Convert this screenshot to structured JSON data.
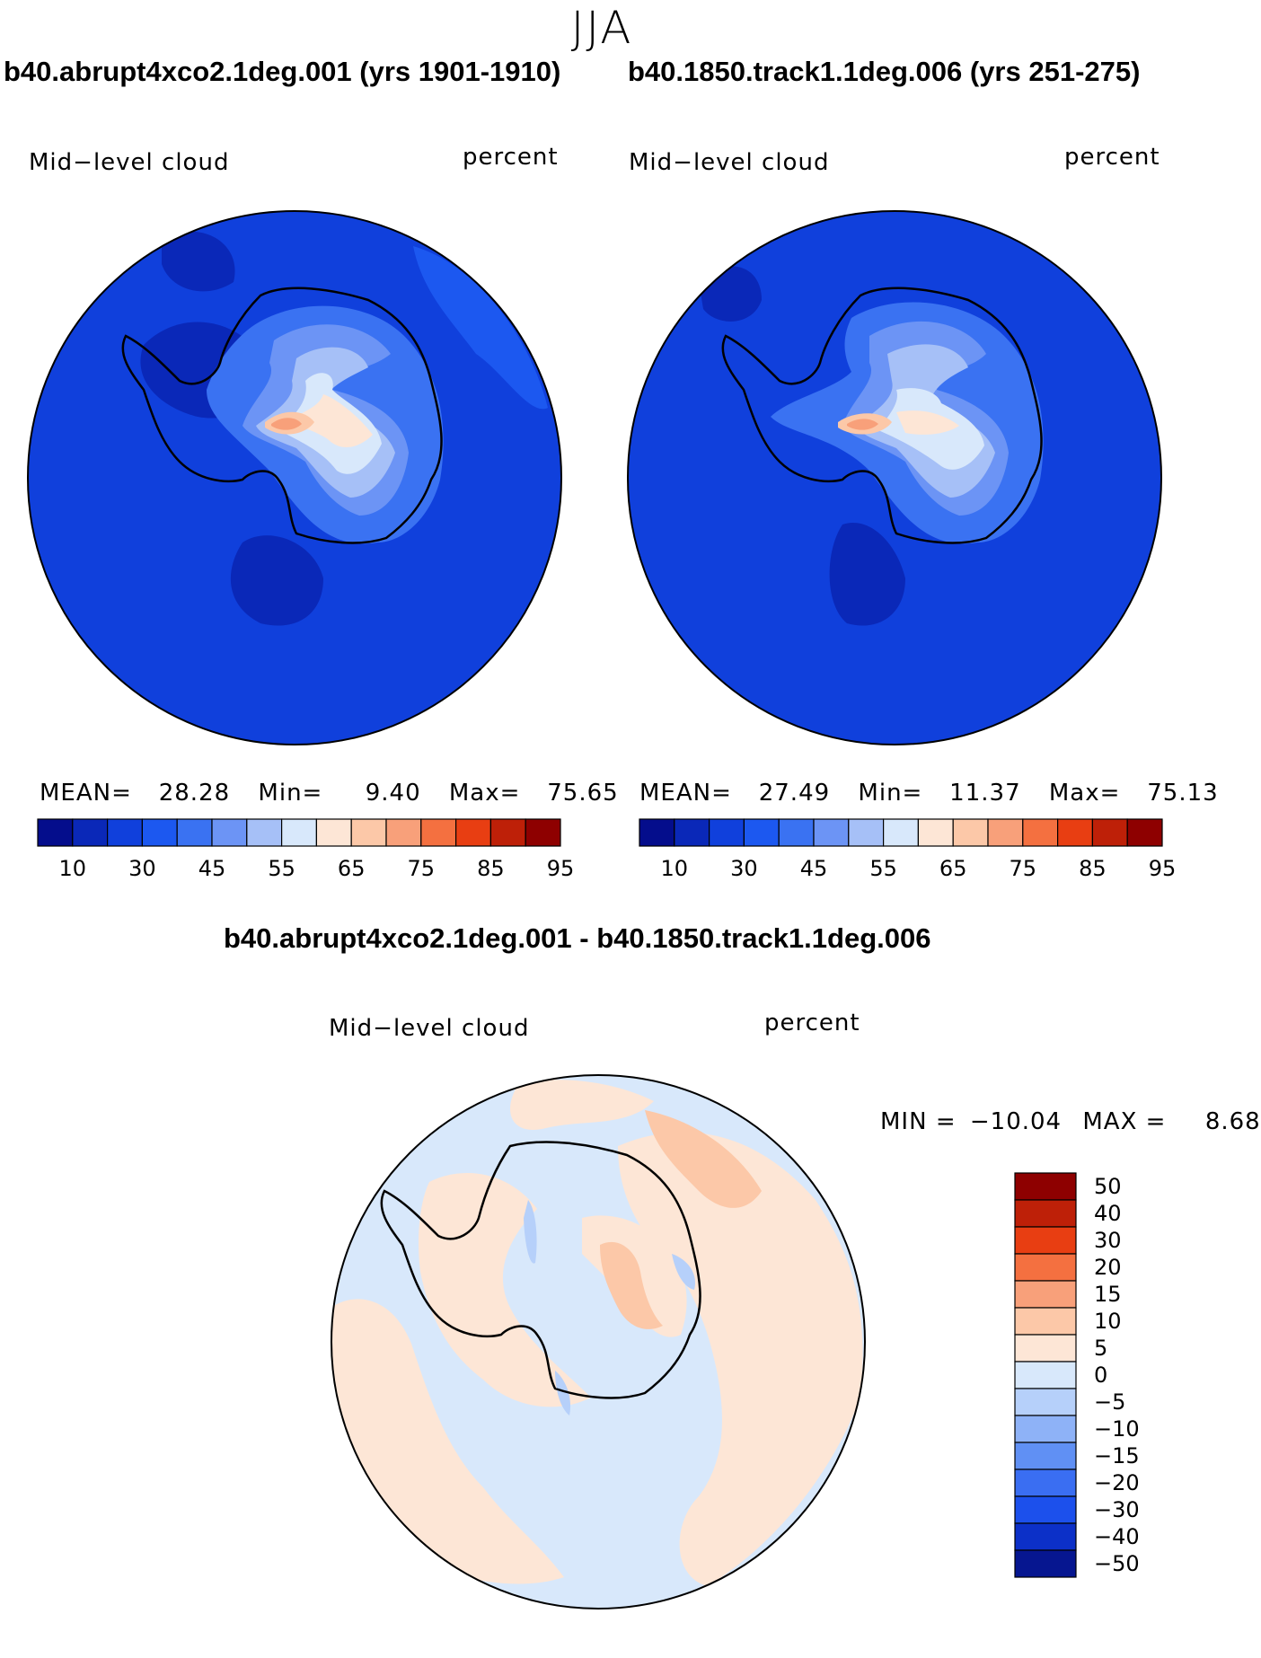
{
  "suptitle": "JJA",
  "chart_data": [
    {
      "type": "heatmap",
      "projection": "south-polar-stereographic",
      "case_title": "b40.abrupt4xco2.1deg.001 (yrs 1901-1910)",
      "variable": "Mid−level cloud",
      "units": "percent",
      "stats": {
        "mean_label": "MEAN=",
        "mean": "28.28",
        "min_label": "Min=",
        "min": "9.40",
        "max_label": "Max=",
        "max": "75.65"
      },
      "colorbar": {
        "orientation": "horizontal",
        "colors": [
          "#040d8c",
          "#0a28b8",
          "#1040dc",
          "#1c58f0",
          "#3a72f2",
          "#6c94f5",
          "#a6c0f7",
          "#d8e8fb",
          "#fde6d6",
          "#fcc8a8",
          "#f8a07a",
          "#f47040",
          "#e83e12",
          "#be2008",
          "#8e0000"
        ],
        "tick_labels": [
          "10",
          "30",
          "45",
          "55",
          "65",
          "75",
          "85",
          "95"
        ]
      }
    },
    {
      "type": "heatmap",
      "projection": "south-polar-stereographic",
      "case_title": "b40.1850.track1.1deg.006 (yrs 251-275)",
      "variable": "Mid−level cloud",
      "units": "percent",
      "stats": {
        "mean_label": "MEAN=",
        "mean": "27.49",
        "min_label": "Min=",
        "min": "11.37",
        "max_label": "Max=",
        "max": "75.13"
      },
      "colorbar": {
        "orientation": "horizontal",
        "colors": [
          "#040d8c",
          "#0a28b8",
          "#1040dc",
          "#1c58f0",
          "#3a72f2",
          "#6c94f5",
          "#a6c0f7",
          "#d8e8fb",
          "#fde6d6",
          "#fcc8a8",
          "#f8a07a",
          "#f47040",
          "#e83e12",
          "#be2008",
          "#8e0000"
        ],
        "tick_labels": [
          "10",
          "30",
          "45",
          "55",
          "65",
          "75",
          "85",
          "95"
        ]
      }
    },
    {
      "type": "heatmap",
      "projection": "south-polar-stereographic",
      "case_title": "b40.abrupt4xco2.1deg.001 - b40.1850.track1.1deg.006",
      "variable": "Mid−level cloud",
      "units": "percent",
      "stats": {
        "min_label": "MIN =",
        "min": "−10.04",
        "max_label": "MAX =",
        "max": "8.68"
      },
      "colorbar": {
        "orientation": "vertical",
        "colors_top_to_bottom": [
          "#8e0000",
          "#be2008",
          "#e83e12",
          "#f47040",
          "#f8a07a",
          "#fcc8a8",
          "#fde6d6",
          "#d8e8fb",
          "#b6d0fa",
          "#8eb2f7",
          "#6090f4",
          "#3a6ef2",
          "#1c50ec",
          "#0c30c8",
          "#061690"
        ],
        "tick_labels_top_to_bottom": [
          "50",
          "40",
          "30",
          "20",
          "15",
          "10",
          "5",
          "0",
          "−5",
          "−10",
          "−15",
          "−20",
          "−30",
          "−40",
          "−50"
        ]
      }
    }
  ]
}
